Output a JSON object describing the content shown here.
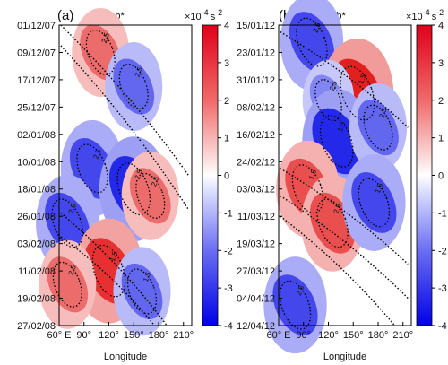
{
  "chart_data": [
    {
      "type": "heatmap",
      "panel_label": "(a)",
      "title": "S-ab*",
      "xlabel": "Longitude",
      "x_ticks": [
        "60° E",
        "90°",
        "120°",
        "150°",
        "180°",
        "210°"
      ],
      "y_ticks": [
        "01/12/07",
        "09/12/07",
        "17/12/07",
        "25/12/07",
        "02/01/08",
        "10/01/08",
        "18/01/08",
        "26/01/08",
        "03/02/08",
        "11/02/08",
        "19/02/08",
        "27/02/08"
      ],
      "colorbar": {
        "unit": "×10^-4 s^-2",
        "unit_base": "×10",
        "unit_exp": "-4",
        "unit_tail": "s",
        "unit_tail_exp": "-2",
        "ticks": [
          "4",
          "3",
          "2",
          "1",
          "0",
          "-1",
          "-2",
          "-3",
          "-4"
        ],
        "range": [
          -4,
          4
        ]
      },
      "contour_labels": [
        "2.5",
        "2.5",
        "2.5",
        "2.5",
        "2.5",
        "2.5",
        "1.5",
        "2.5",
        "1.5",
        "2.5"
      ],
      "features": [
        {
          "lon": 110,
          "day": 8,
          "value": 2.5
        },
        {
          "lon": 150,
          "day": 18,
          "value": -2.5
        },
        {
          "lon": 100,
          "day": 42,
          "value": -3.0
        },
        {
          "lon": 150,
          "day": 48,
          "value": -3.5
        },
        {
          "lon": 170,
          "day": 50,
          "value": 2.5
        },
        {
          "lon": 70,
          "day": 58,
          "value": -3.0
        },
        {
          "lon": 120,
          "day": 72,
          "value": 3.5
        },
        {
          "lon": 70,
          "day": 76,
          "value": 2.5
        },
        {
          "lon": 160,
          "day": 78,
          "value": -2.5
        }
      ]
    },
    {
      "type": "heatmap",
      "panel_label": "(b)",
      "title": "S-ab*",
      "xlabel": "Longitude",
      "x_ticks": [
        "60° E",
        "90°",
        "120°",
        "150°",
        "180°",
        "210°"
      ],
      "y_ticks": [
        "15/01/12",
        "23/01/12",
        "31/01/12",
        "08/02/12",
        "16/02/12",
        "24/02/12",
        "03/03/12",
        "11/03/12",
        "19/03/12",
        "27/03/12",
        "04/04/12",
        "12/04/12"
      ],
      "colorbar": {
        "unit": "×10^-4 s^-2",
        "unit_base": "×10",
        "unit_exp": "-4",
        "unit_tail": "s",
        "unit_tail_exp": "-2",
        "ticks": [
          "4",
          "3",
          "2",
          "1",
          "0",
          "-1",
          "-2",
          "-3",
          "-4"
        ],
        "range": [
          -4,
          4
        ]
      },
      "contour_labels": [
        "2.5",
        "1.5",
        "2.5",
        "1.5",
        "2.5",
        "1.5",
        "2.5",
        "1.5",
        "2.5",
        "2.5"
      ],
      "features": [
        {
          "lon": 100,
          "day": 5,
          "value": -3.0
        },
        {
          "lon": 155,
          "day": 20,
          "value": 3.8
        },
        {
          "lon": 120,
          "day": 22,
          "value": -2.0
        },
        {
          "lon": 130,
          "day": 34,
          "value": -3.5
        },
        {
          "lon": 180,
          "day": 30,
          "value": -2.5
        },
        {
          "lon": 95,
          "day": 48,
          "value": 3.0
        },
        {
          "lon": 125,
          "day": 58,
          "value": 3.0
        },
        {
          "lon": 175,
          "day": 52,
          "value": -3.0
        },
        {
          "lon": 80,
          "day": 82,
          "value": -3.0
        }
      ]
    }
  ]
}
